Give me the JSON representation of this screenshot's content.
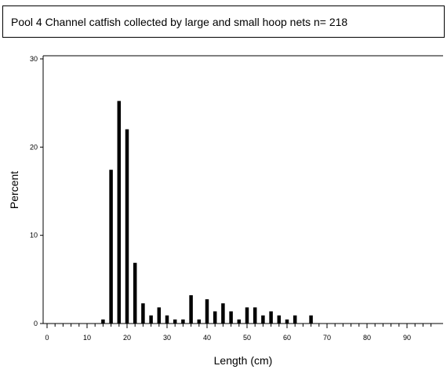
{
  "chart_data": {
    "type": "bar",
    "title": "Pool 4 Channel catfish collected by large and small hoop nets n= 218",
    "xlabel": "Length (cm)",
    "ylabel": "Percent",
    "xlim": [
      0,
      97
    ],
    "ylim": [
      0,
      30
    ],
    "x_ticks": [
      0,
      10,
      20,
      30,
      40,
      50,
      60,
      70,
      80,
      90
    ],
    "y_ticks": [
      0,
      10,
      20,
      30
    ],
    "x_tick_labels": [
      "0",
      "10",
      "20",
      "30",
      "40",
      "50",
      "60",
      "70",
      "80",
      "90"
    ],
    "y_tick_labels": [
      "0",
      "10",
      "20",
      "30"
    ],
    "x_minor_tick_step": 2,
    "grid": false,
    "bar_color": "#000000",
    "x": [
      14,
      16,
      18,
      20,
      22,
      24,
      26,
      28,
      30,
      32,
      34,
      36,
      38,
      40,
      42,
      44,
      46,
      48,
      50,
      52,
      54,
      56,
      58,
      60,
      62,
      66
    ],
    "values": [
      0.46,
      17.43,
      25.23,
      22.02,
      6.88,
      2.29,
      0.92,
      1.83,
      0.92,
      0.46,
      0.46,
      3.21,
      0.46,
      2.75,
      1.38,
      2.29,
      1.38,
      0.46,
      1.83,
      1.83,
      0.92,
      1.38,
      0.92,
      0.46,
      0.92,
      0.92
    ]
  }
}
